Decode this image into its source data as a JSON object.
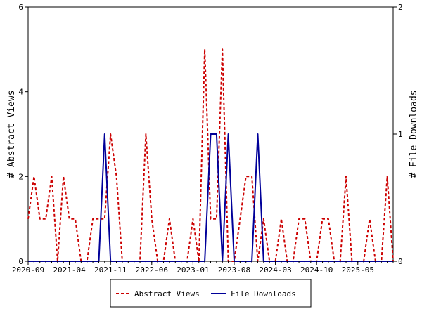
{
  "chart_data": {
    "type": "line",
    "ylabel_left": "# Abstract Views",
    "ylabel_right": "# File Downloads",
    "ylim_left": [
      0,
      6
    ],
    "ylim_right": [
      0,
      2
    ],
    "yticks_left": [
      "0",
      "2",
      "4",
      "6"
    ],
    "yticks_right": [
      "0",
      "1",
      "2"
    ],
    "x_tick_labels": [
      "2020-09",
      "2021-04",
      "2021-11",
      "2022-06",
      "2023-01",
      "2023-08",
      "2024-03",
      "2024-10",
      "2025-05"
    ],
    "x_tick_index": [
      0,
      7,
      14,
      21,
      28,
      35,
      42,
      49,
      56
    ],
    "grid": false,
    "legend_position": "bottom-center",
    "series": [
      {
        "name": "Abstract Views",
        "color": "#cc0000",
        "dash": "dashed",
        "axis": "left",
        "values": [
          1,
          2,
          1,
          1,
          2,
          0,
          2,
          1,
          1,
          0,
          0,
          1,
          1,
          1,
          3,
          2,
          0,
          0,
          0,
          0,
          3,
          1,
          0,
          0,
          1,
          0,
          0,
          0,
          1,
          0,
          5,
          1,
          1,
          5,
          0,
          0,
          1,
          2,
          2,
          0,
          1,
          0,
          0,
          1,
          0,
          0,
          1,
          1,
          0,
          0,
          1,
          1,
          0,
          0,
          2,
          0,
          0,
          0,
          1,
          0,
          0,
          2,
          0
        ]
      },
      {
        "name": "File Downloads",
        "color": "#000099",
        "dash": "solid",
        "axis": "right",
        "values": [
          0,
          0,
          0,
          0,
          0,
          0,
          0,
          0,
          0,
          0,
          0,
          0,
          0,
          1,
          0,
          0,
          0,
          0,
          0,
          0,
          0,
          0,
          0,
          0,
          0,
          0,
          0,
          0,
          0,
          0,
          0,
          1,
          1,
          0,
          1,
          0,
          0,
          0,
          0,
          1,
          0,
          0,
          0,
          0,
          0,
          0,
          0,
          0,
          0,
          0,
          0,
          0,
          0,
          0,
          0,
          0,
          0,
          0,
          0,
          0,
          0,
          0,
          0
        ]
      }
    ]
  }
}
